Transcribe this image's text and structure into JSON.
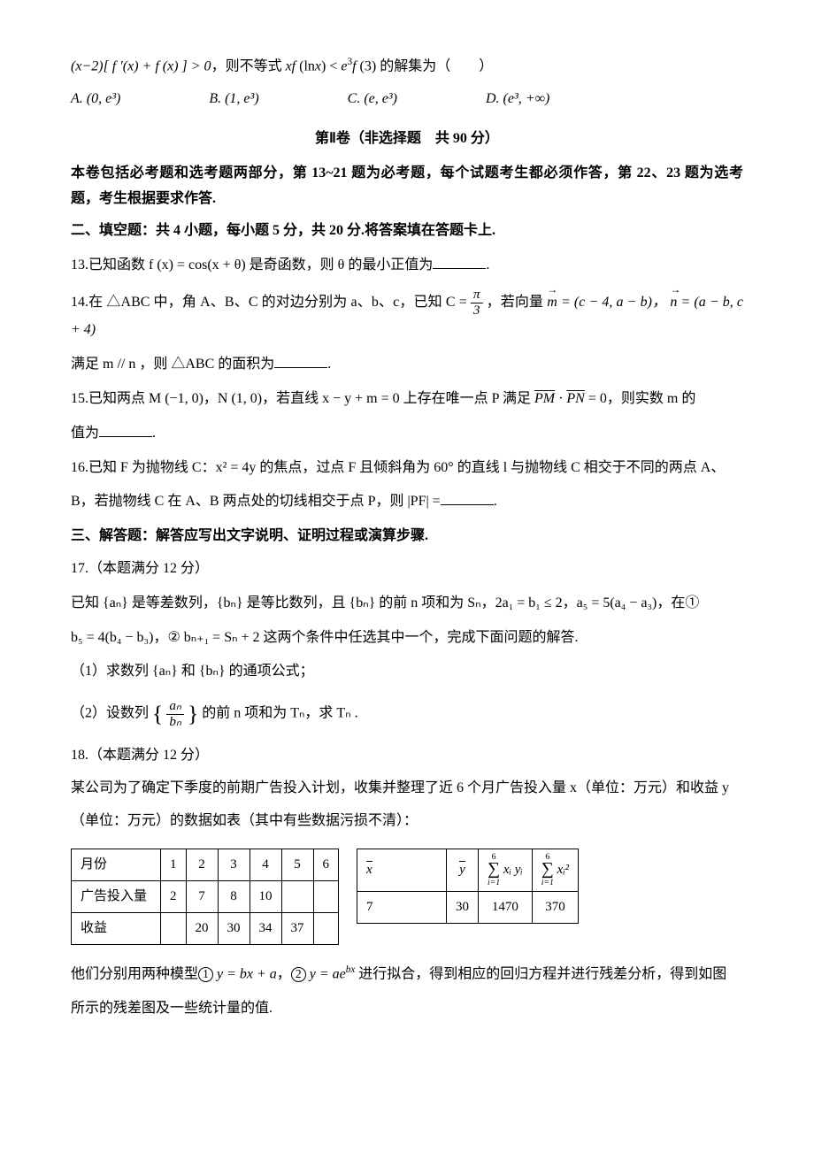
{
  "q12": {
    "stem_prefix": "(x−2)[ f ′(x) + f (x) ] > 0，则不等式 xf (ln x) < e",
    "stem_suffix": "f (3) 的解集为（　　）",
    "opts": {
      "A": "A.  (0, e³)",
      "B": "B.  (1, e³)",
      "C": "C.  (e, e³)",
      "D": "D.  (e³, +∞)"
    }
  },
  "section2_title": "第Ⅱ卷（非选择题　共 90 分）",
  "section2_intro": "本卷包括必考题和选考题两部分，第 13~21 题为必考题，每个试题考生都必须作答，第 22、23 题为选考题，考生根据要求作答.",
  "fill_heading": "二、填空题：共 4 小题，每小题 5 分，共 20 分.将答案填在答题卡上.",
  "q13": "13.已知函数 f (x) = cos(x + θ) 是奇函数，则 θ 的最小正值为",
  "q14_a": "14.在 △ABC 中，角 A、B、C 的对边分别为 a、b、c，已知 C = ",
  "q14_pi": "π",
  "q14_3": "3",
  "q14_b": "，若向量 ",
  "q14_m": "m",
  "q14_meq": " = (c − 4, a − b)，",
  "q14_n": "n",
  "q14_neq": " = (a − b, c + 4)",
  "q14_c": "满足 m // n ，则 △ABC 的面积为",
  "q15_a": "15.已知两点 M (−1, 0)，N (1, 0)，若直线 x − y + m = 0 上存在唯一点 P 满足 ",
  "q15_pm": "PM",
  "q15_dot": " · ",
  "q15_pn": "PN",
  "q15_b": " = 0，则实数 m 的",
  "q15_c": "值为",
  "q16_a": "16.已知 F 为抛物线 C：x² = 4y 的焦点，过点 F 且倾斜角为 60° 的直线 l 与抛物线 C 相交于不同的两点 A、",
  "q16_b": "B，若抛物线 C 在 A、B 两点处的切线相交于点 P，则 |PF| =",
  "solve_heading": "三、解答题：解答应写出文字说明、证明过程或演算步骤.",
  "q17_head": "17.（本题满分 12 分）",
  "q17_a": "已知 {aₙ} 是等差数列，{bₙ} 是等比数列，且 {bₙ} 的前 n 项和为 Sₙ，2a₁ = b₁ ≤ 2，a₅ = 5(a₄ − a₃)，在①",
  "q17_b": "b₅ = 4(b₄ − b₃)，② bₙ₊₁ = Sₙ + 2 这两个条件中任选其中一个，完成下面问题的解答.",
  "q17_1": "（1）求数列 {aₙ} 和 {bₙ} 的通项公式；",
  "q17_2a": "（2）设数列 ",
  "q17_2_num": "aₙ",
  "q17_2_den": "bₙ",
  "q17_2b": " 的前 n 项和为 Tₙ，求 Tₙ .",
  "q18_head": "18.（本题满分 12 分）",
  "q18_a": "某公司为了确定下季度的前期广告投入计划，收集并整理了近 6 个月广告投入量 x（单位：万元）和收益 y",
  "q18_b": "（单位：万元）的数据如表（其中有些数据污损不清）：",
  "table1": {
    "rows": [
      [
        "月份",
        "1",
        "2",
        "3",
        "4",
        "5",
        "6"
      ],
      [
        "广告投入量",
        "2",
        "7",
        "8",
        "10",
        "",
        ""
      ],
      [
        "收益",
        "",
        "20",
        "30",
        "34",
        "37",
        ""
      ]
    ]
  },
  "table2": {
    "header_xbar": "x",
    "header_ybar": "y",
    "header_sumxy_top": "6",
    "header_sumxy_bot": "i=1",
    "header_sumxy_body": "xᵢ yᵢ",
    "header_sumx2_top": "6",
    "header_sumx2_bot": "i=1",
    "header_sumx2_body": "xᵢ²",
    "row": [
      "7",
      "30",
      "1470",
      "370"
    ]
  },
  "q18_c": "他们分别用两种模型① y = bx + a，② y = ae^{bx} 进行拟合，得到相应的回归方程并进行残差分析，得到如图",
  "q18_d": "所示的残差图及一些统计量的值."
}
